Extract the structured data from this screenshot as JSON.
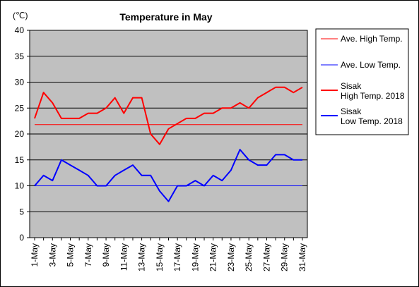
{
  "chart_data": {
    "type": "line",
    "title": "Temperature in May",
    "unit_label": "(℃)",
    "ylim": [
      0,
      40
    ],
    "yticks": [
      0,
      5,
      10,
      15,
      20,
      25,
      30,
      35,
      40
    ],
    "x_days": [
      1,
      2,
      3,
      4,
      5,
      6,
      7,
      8,
      9,
      10,
      11,
      12,
      13,
      14,
      15,
      16,
      17,
      18,
      19,
      20,
      21,
      22,
      23,
      24,
      25,
      26,
      27,
      28,
      29,
      30,
      31
    ],
    "x_tick_labels": [
      "1-May",
      "3-May",
      "5-May",
      "7-May",
      "9-May",
      "11-May",
      "13-May",
      "15-May",
      "17-May",
      "19-May",
      "21-May",
      "23-May",
      "25-May",
      "27-May",
      "29-May",
      "31-May"
    ],
    "grid": "horizontal",
    "legend_position": "right",
    "plot_background": "#c0c0c0",
    "series": [
      {
        "name": "Ave. High Temp.",
        "color": "#ff0000",
        "width": 1,
        "values": [
          21.8,
          21.8,
          21.8,
          21.8,
          21.8,
          21.8,
          21.8,
          21.8,
          21.8,
          21.8,
          21.8,
          21.8,
          21.8,
          21.8,
          21.8,
          21.8,
          21.8,
          21.8,
          21.8,
          21.8,
          21.8,
          21.8,
          21.8,
          21.8,
          21.8,
          21.8,
          21.8,
          21.8,
          21.8,
          21.8,
          21.8
        ]
      },
      {
        "name": "Ave. Low Temp.",
        "color": "#0000ff",
        "width": 1,
        "values": [
          10,
          10,
          10,
          10,
          10,
          10,
          10,
          10,
          10,
          10,
          10,
          10,
          10,
          10,
          10,
          10,
          10,
          10,
          10,
          10,
          10,
          10,
          10,
          10,
          10,
          10,
          10,
          10,
          10,
          10,
          10
        ]
      },
      {
        "name": "Sisak High Temp. 2018",
        "name_lines": [
          "Sisak",
          "High Temp. 2018"
        ],
        "color": "#ff0000",
        "width": 2,
        "values": [
          23,
          28,
          26,
          23,
          23,
          23,
          24,
          24,
          25,
          27,
          24,
          27,
          27,
          20,
          18,
          21,
          22,
          23,
          23,
          24,
          24,
          25,
          25,
          26,
          25,
          27,
          28,
          29,
          29,
          28,
          29
        ]
      },
      {
        "name": "Sisak Low Temp. 2018",
        "name_lines": [
          "Sisak",
          "Low Temp. 2018"
        ],
        "color": "#0000ff",
        "width": 2,
        "values": [
          10,
          12,
          11,
          15,
          14,
          13,
          12,
          10,
          10,
          12,
          13,
          14,
          12,
          12,
          9,
          7,
          10,
          10,
          11,
          10,
          12,
          11,
          13,
          17,
          15,
          14,
          14,
          16,
          16,
          15,
          15
        ]
      }
    ]
  }
}
